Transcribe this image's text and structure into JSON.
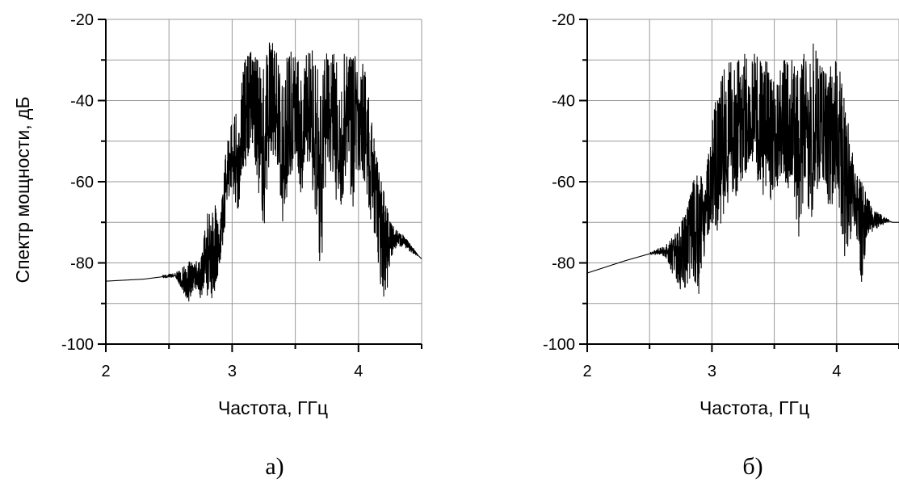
{
  "chart_data": [
    {
      "type": "line",
      "panel_label": "а)",
      "xlabel": "Частота, ГГц",
      "ylabel": "Спектр мощности, дБ",
      "xlim": [
        2,
        4.5
      ],
      "ylim": [
        -100,
        -20
      ],
      "xticks": [
        "2",
        "3",
        "4"
      ],
      "yticks": [
        "-20",
        "-40",
        "-60",
        "-80",
        "-100"
      ],
      "grid": true,
      "series": [
        {
          "x": [
            2.0,
            2.3,
            2.55,
            2.65,
            2.7,
            2.75,
            2.8,
            2.85,
            2.9,
            2.95,
            3.0,
            3.05,
            3.1,
            3.15,
            3.2,
            3.25,
            3.3,
            3.35,
            3.4,
            3.45,
            3.5,
            3.55,
            3.6,
            3.65,
            3.7,
            3.75,
            3.8,
            3.85,
            3.9,
            3.95,
            4.0,
            4.05,
            4.1,
            4.15,
            4.2,
            4.25,
            4.3,
            4.35,
            4.4,
            4.5
          ],
          "upper": [
            -84.5,
            -84.0,
            -82.5,
            -80,
            -79,
            -80,
            -68,
            -63,
            -72,
            -52,
            -45,
            -42,
            -30,
            -28,
            -30,
            -32,
            -24,
            -28,
            -34,
            -27,
            -28,
            -33,
            -27,
            -28,
            -33,
            -28,
            -28,
            -33,
            -27,
            -30,
            -28,
            -32,
            -44,
            -55,
            -62,
            -70,
            -72,
            -73,
            -75,
            -79
          ],
          "lower": [
            -84.5,
            -84.0,
            -83.5,
            -90,
            -86,
            -90,
            -88,
            -89,
            -82,
            -70,
            -62,
            -68,
            -58,
            -50,
            -60,
            -73,
            -52,
            -55,
            -72,
            -60,
            -55,
            -65,
            -56,
            -65,
            -85,
            -55,
            -60,
            -70,
            -58,
            -68,
            -57,
            -62,
            -70,
            -78,
            -95,
            -80,
            -76,
            -76,
            -77,
            -79
          ]
        }
      ]
    },
    {
      "type": "line",
      "panel_label": "б)",
      "xlabel": "Частота, ГГц",
      "ylabel": "",
      "xlim": [
        2,
        4.5
      ],
      "ylim": [
        -100,
        -20
      ],
      "xticks": [
        "2",
        "3",
        "4"
      ],
      "yticks": [
        "-20",
        "-40",
        "-60",
        "-80",
        "-100"
      ],
      "grid": true,
      "series": [
        {
          "x": [
            2.0,
            2.3,
            2.5,
            2.6,
            2.65,
            2.7,
            2.75,
            2.8,
            2.85,
            2.9,
            2.95,
            3.0,
            3.05,
            3.1,
            3.15,
            3.2,
            3.25,
            3.3,
            3.35,
            3.4,
            3.45,
            3.5,
            3.55,
            3.6,
            3.65,
            3.7,
            3.75,
            3.8,
            3.85,
            3.9,
            3.95,
            4.0,
            4.05,
            4.1,
            4.15,
            4.2,
            4.25,
            4.3,
            4.35,
            4.4,
            4.45,
            4.5
          ],
          "upper": [
            -82.5,
            -79.5,
            -77.5,
            -76,
            -75,
            -73,
            -70,
            -67,
            -60,
            -57,
            -60,
            -43,
            -38,
            -32,
            -30,
            -31,
            -27,
            -32,
            -27,
            -30,
            -29,
            -33,
            -28,
            -30,
            -29,
            -33,
            -27,
            -25,
            -29,
            -33,
            -28,
            -30,
            -35,
            -47,
            -58,
            -60,
            -64,
            -67,
            -68,
            -69,
            -70,
            -70
          ],
          "lower": [
            -82.5,
            -79.5,
            -78,
            -78,
            -80,
            -84,
            -88,
            -86,
            -84,
            -91,
            -75,
            -72,
            -72,
            -70,
            -62,
            -66,
            -60,
            -55,
            -58,
            -65,
            -62,
            -68,
            -58,
            -62,
            -62,
            -75,
            -59,
            -76,
            -60,
            -60,
            -70,
            -60,
            -82,
            -75,
            -72,
            -85,
            -73,
            -72,
            -71,
            -70,
            -70,
            -70
          ]
        }
      ]
    }
  ]
}
